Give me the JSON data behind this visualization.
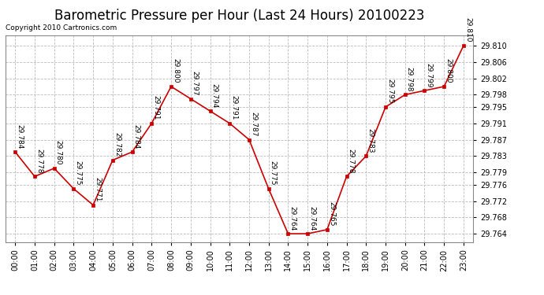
{
  "title": "Barometric Pressure per Hour (Last 24 Hours) 20100223",
  "copyright": "Copyright 2010 Cartronics.com",
  "hours": [
    "00:00",
    "01:00",
    "02:00",
    "03:00",
    "04:00",
    "05:00",
    "06:00",
    "07:00",
    "08:00",
    "09:00",
    "10:00",
    "11:00",
    "12:00",
    "13:00",
    "14:00",
    "15:00",
    "16:00",
    "17:00",
    "18:00",
    "19:00",
    "20:00",
    "21:00",
    "22:00",
    "23:00"
  ],
  "values": [
    29.784,
    29.778,
    29.78,
    29.775,
    29.771,
    29.782,
    29.784,
    29.791,
    29.8,
    29.797,
    29.794,
    29.791,
    29.787,
    29.775,
    29.764,
    29.764,
    29.765,
    29.778,
    29.783,
    29.795,
    29.798,
    29.799,
    29.8,
    29.81
  ],
  "line_color": "#cc0000",
  "marker_color": "#cc0000",
  "background_color": "#ffffff",
  "grid_color": "#bbbbbb",
  "title_fontsize": 12,
  "tick_fontsize": 7,
  "annot_fontsize": 6.5,
  "copyright_fontsize": 6.5,
  "ylim_min": 29.762,
  "ylim_max": 29.8125,
  "ytick_values": [
    29.764,
    29.768,
    29.772,
    29.776,
    29.779,
    29.783,
    29.787,
    29.791,
    29.795,
    29.798,
    29.802,
    29.806,
    29.81
  ]
}
